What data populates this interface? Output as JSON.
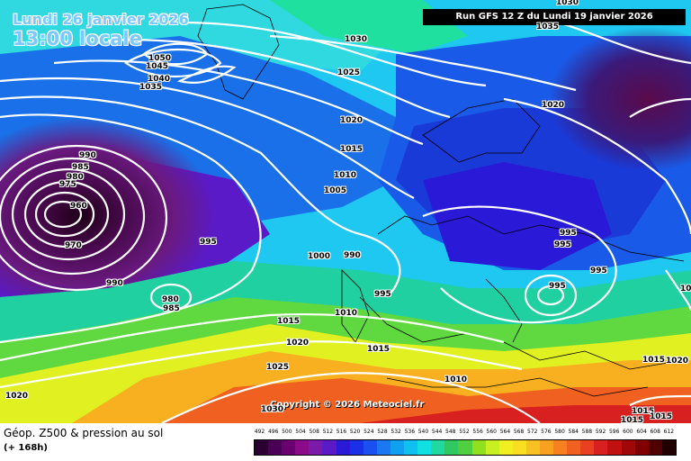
{
  "header": {
    "date": "Lundi 26 janvier 2026",
    "time": "13:00 locale"
  },
  "run_label": "Run GFS 12 Z du Lundi 19 janvier 2026",
  "copyright": "Copyright © 2026 Meteociel.fr",
  "footer": {
    "title": "Géop. Z500 & pression au sol",
    "subtitle": "(+ 168h)"
  },
  "isobar_labels": [
    {
      "id": "l1030a",
      "text": "1030"
    },
    {
      "id": "l1035top",
      "text": "1035"
    },
    {
      "id": "l1030r",
      "text": "1030"
    },
    {
      "id": "l1050",
      "text": "1050"
    },
    {
      "id": "l1045",
      "text": "1045"
    },
    {
      "id": "l1040",
      "text": "1040"
    },
    {
      "id": "l1035",
      "text": "1035"
    },
    {
      "id": "l1025",
      "text": "1025"
    },
    {
      "id": "l1020a",
      "text": "1020"
    },
    {
      "id": "l1020b",
      "text": "1020"
    },
    {
      "id": "l1015",
      "text": "1015"
    },
    {
      "id": "l1010",
      "text": "1010"
    },
    {
      "id": "l1005",
      "text": "1005"
    },
    {
      "id": "l990a",
      "text": "990"
    },
    {
      "id": "l985a",
      "text": "985"
    },
    {
      "id": "l980a",
      "text": "980"
    },
    {
      "id": "l975",
      "text": "975"
    },
    {
      "id": "l960",
      "text": "960"
    },
    {
      "id": "l970",
      "text": "970"
    },
    {
      "id": "l995a",
      "text": "995"
    },
    {
      "id": "l1000",
      "text": "1000"
    },
    {
      "id": "l990b",
      "text": "990"
    },
    {
      "id": "l990c",
      "text": "990"
    },
    {
      "id": "l980b",
      "text": "980"
    },
    {
      "id": "l985b",
      "text": "985"
    },
    {
      "id": "l995b",
      "text": "995"
    },
    {
      "id": "l1015b",
      "text": "1015"
    },
    {
      "id": "l1010b",
      "text": "1010"
    },
    {
      "id": "l1020c",
      "text": "1020"
    },
    {
      "id": "l1015c",
      "text": "1015"
    },
    {
      "id": "l1025b",
      "text": "1025"
    },
    {
      "id": "l1020d",
      "text": "1020"
    },
    {
      "id": "l1030b",
      "text": "1030"
    },
    {
      "id": "l1010c",
      "text": "1010"
    },
    {
      "id": "l995c",
      "text": "995"
    },
    {
      "id": "l995d",
      "text": "995"
    },
    {
      "id": "l995e",
      "text": "995"
    },
    {
      "id": "l995f",
      "text": "995"
    },
    {
      "id": "l1015d",
      "text": "1015"
    },
    {
      "id": "l1020e",
      "text": "1020"
    },
    {
      "id": "l1015e",
      "text": "1015"
    },
    {
      "id": "l1015f",
      "text": "1015"
    },
    {
      "id": "l1015g",
      "text": "1015"
    },
    {
      "id": "l1010d",
      "text": "1010"
    }
  ],
  "legend": {
    "labels": [
      "492",
      "496",
      "500",
      "504",
      "508",
      "512",
      "516",
      "520",
      "524",
      "528",
      "532",
      "536",
      "540",
      "544",
      "548",
      "552",
      "556",
      "560",
      "564",
      "568",
      "572",
      "576",
      "580",
      "584",
      "588",
      "592",
      "596",
      "600",
      "604",
      "608",
      "612"
    ],
    "colors": [
      "#2a0030",
      "#4a0055",
      "#6a0070",
      "#8a0a8a",
      "#7a1aa8",
      "#5a1ac8",
      "#2a1ad8",
      "#1a30e8",
      "#1a50f0",
      "#1a78f0",
      "#10a0f0",
      "#10c0f0",
      "#10e0e0",
      "#20d8a0",
      "#30c860",
      "#50d040",
      "#90e020",
      "#c8f020",
      "#f0f020",
      "#f8e020",
      "#f8c020",
      "#f8a020",
      "#f88020",
      "#f06020",
      "#e84020",
      "#d82020",
      "#c01010",
      "#a00808",
      "#800000",
      "#500000",
      "#200000"
    ]
  }
}
